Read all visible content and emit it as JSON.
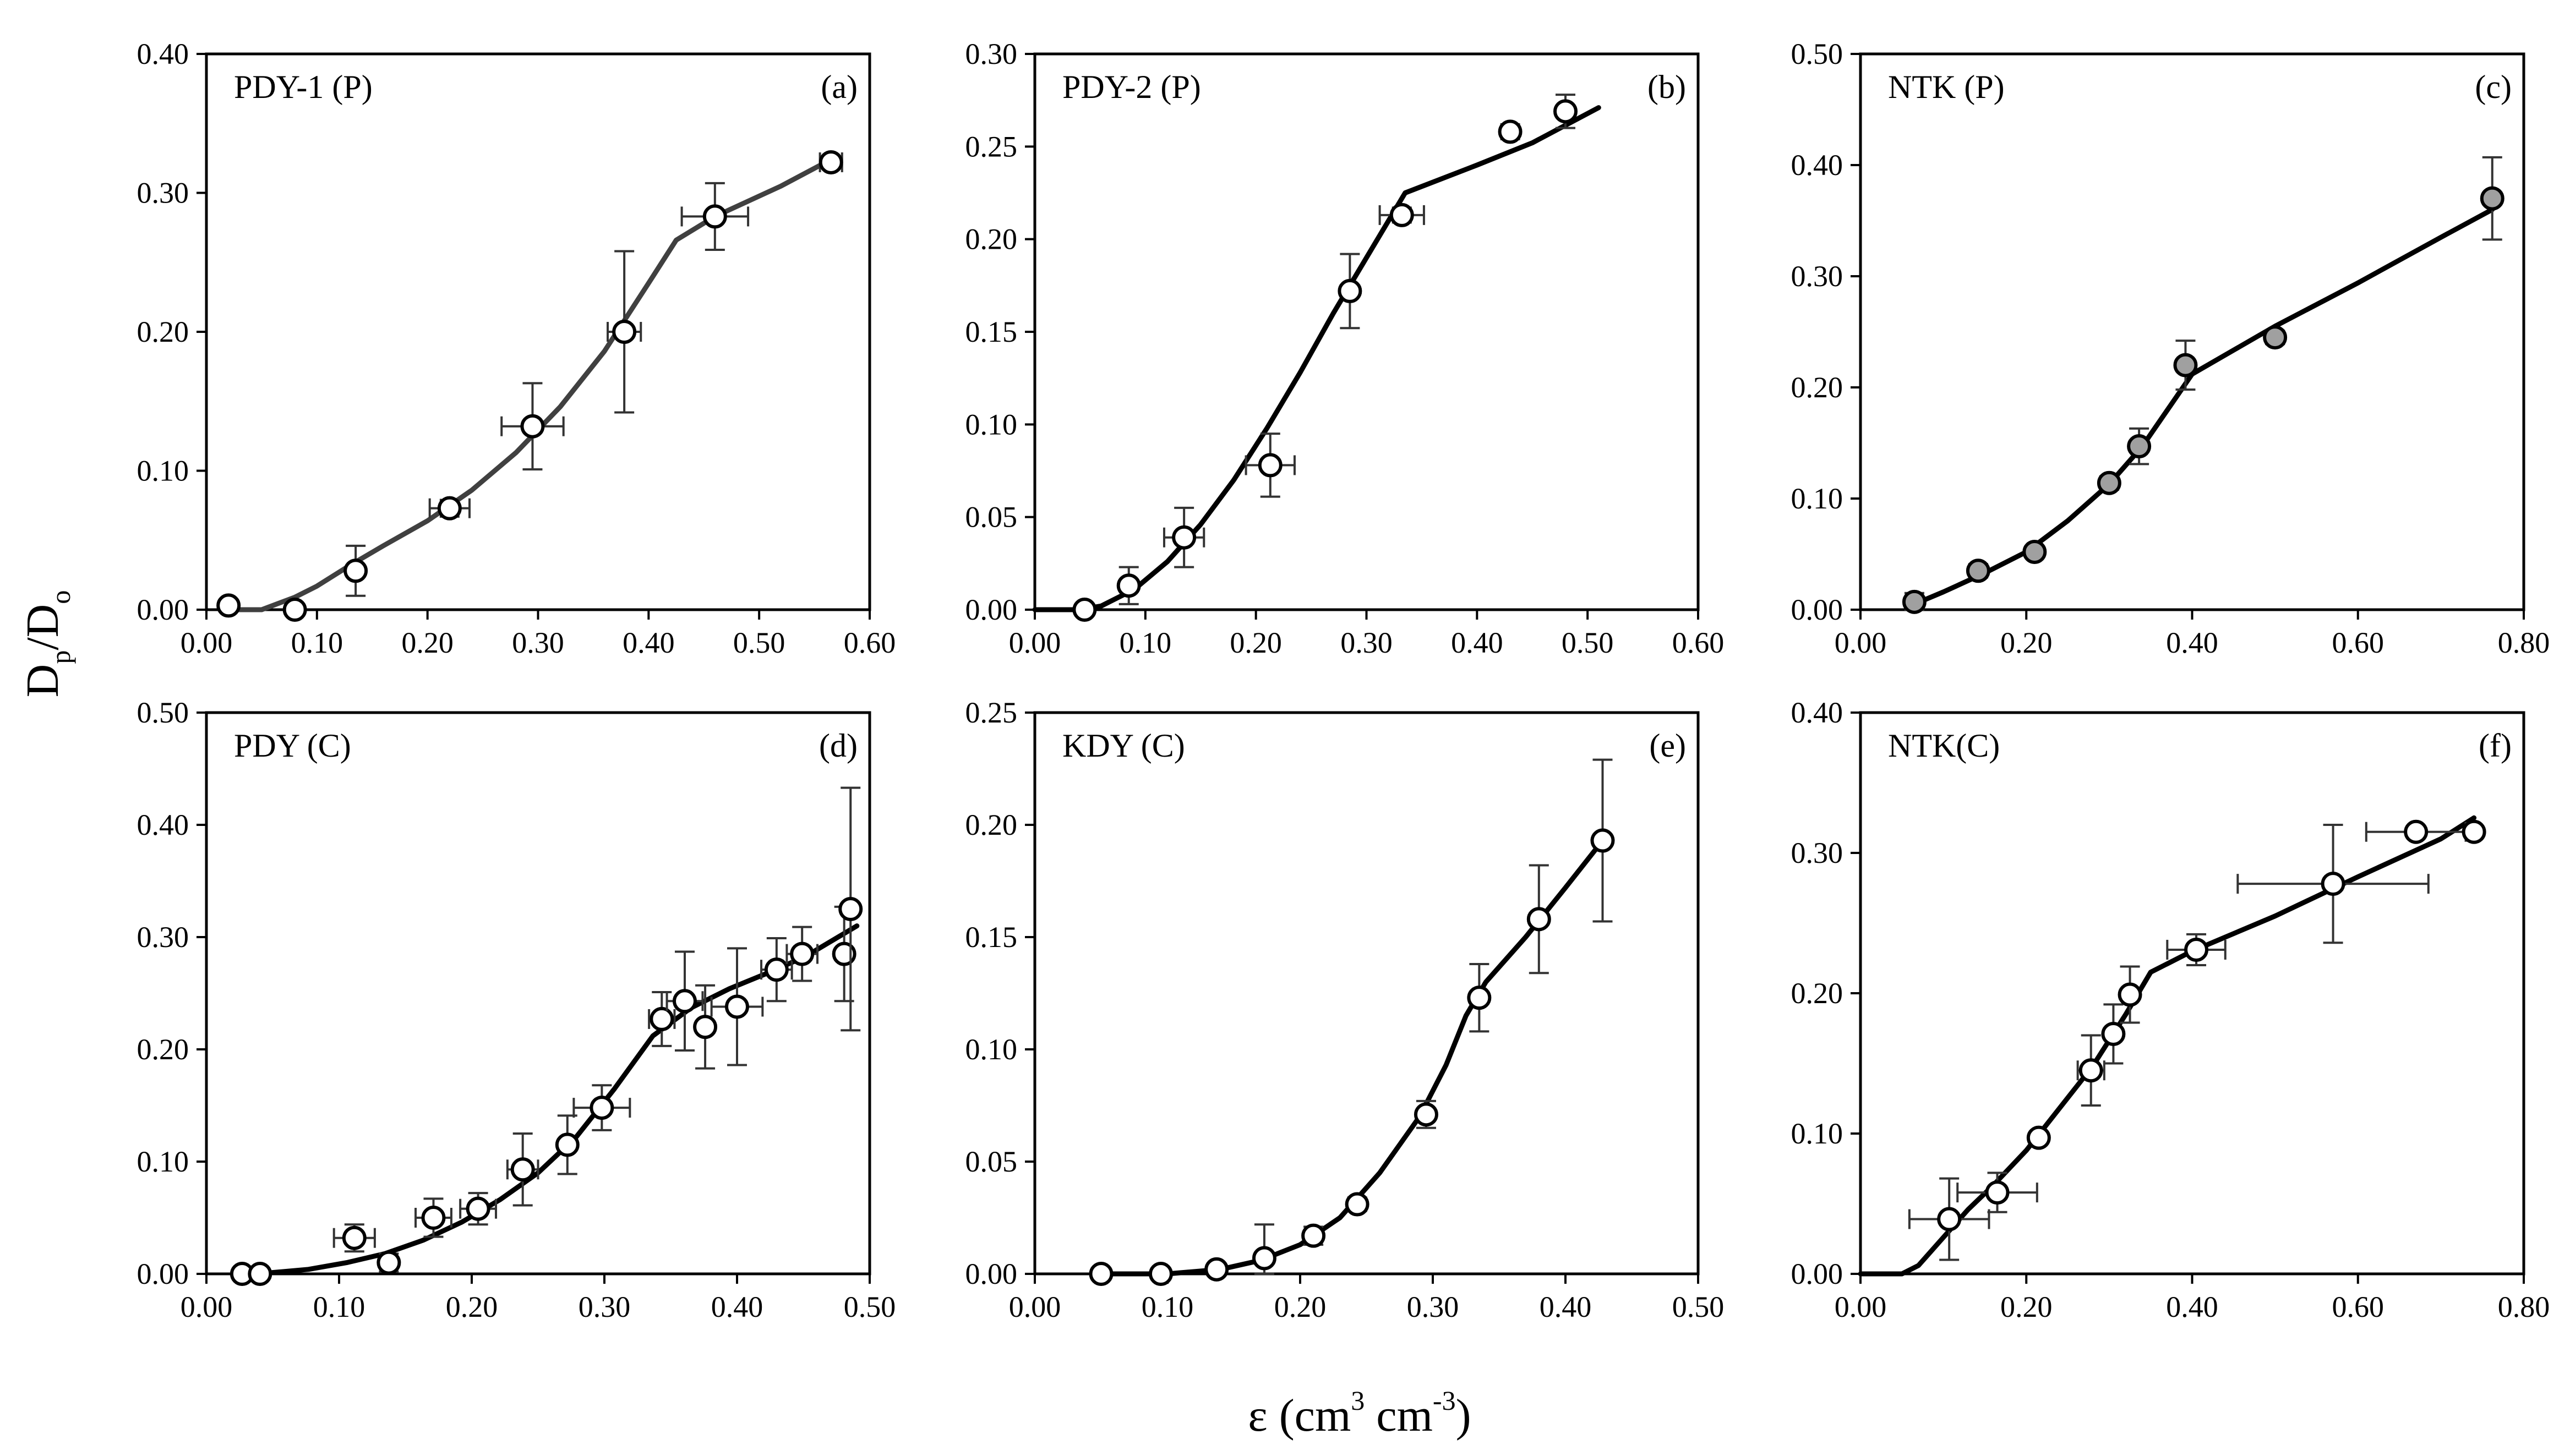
{
  "figure": {
    "xlabel": {
      "base": "ε (cm",
      "sup1": "3",
      "mid": " cm",
      "sup2": "-3",
      "end": ")"
    },
    "ylabel": {
      "d": "D",
      "p": "p",
      "slash": "/D",
      "o": "o"
    }
  },
  "chart_data": [
    {
      "type": "scatter",
      "title": "PDY-1 (P)",
      "tag": "(a)",
      "xlim": [
        0,
        0.6
      ],
      "ylim": [
        0,
        0.4
      ],
      "xticks": [
        "0.00",
        "0.10",
        "0.20",
        "0.30",
        "0.40",
        "0.50",
        "0.60"
      ],
      "yticks": [
        "0.00",
        "0.10",
        "0.20",
        "0.30",
        "0.40"
      ],
      "line_color": "#404040",
      "marker_fill": "#ffffff",
      "points": [
        {
          "x": 0.02,
          "y": 0.003,
          "yerr": 0,
          "xerr": 0
        },
        {
          "x": 0.08,
          "y": 0.0,
          "yerr": 0,
          "xerr": 0
        },
        {
          "x": 0.135,
          "y": 0.028,
          "yerr": 0.018,
          "xerr": 0
        },
        {
          "x": 0.22,
          "y": 0.073,
          "yerr": 0.006,
          "xerr": 0.018
        },
        {
          "x": 0.295,
          "y": 0.132,
          "yerr": 0.031,
          "xerr": 0.028
        },
        {
          "x": 0.378,
          "y": 0.2,
          "yerr": 0.058,
          "xerr": 0.015
        },
        {
          "x": 0.46,
          "y": 0.283,
          "yerr": 0.024,
          "xerr": 0.03
        },
        {
          "x": 0.565,
          "y": 0.322,
          "yerr": 0.004,
          "xerr": 0.01
        }
      ],
      "curve": {
        "x": [
          0.02,
          0.05,
          0.08,
          0.1,
          0.13,
          0.16,
          0.2,
          0.24,
          0.28,
          0.32,
          0.36,
          0.4,
          0.425,
          0.46,
          0.52,
          0.565
        ],
        "y": [
          0.0,
          0.0,
          0.009,
          0.017,
          0.032,
          0.046,
          0.064,
          0.086,
          0.113,
          0.146,
          0.186,
          0.235,
          0.266,
          0.283,
          0.305,
          0.324
        ]
      }
    },
    {
      "type": "scatter",
      "title": "PDY-2 (P)",
      "tag": "(b)",
      "xlim": [
        0,
        0.6
      ],
      "ylim": [
        0,
        0.3
      ],
      "xticks": [
        "0.00",
        "0.10",
        "0.20",
        "0.30",
        "0.40",
        "0.50",
        "0.60"
      ],
      "yticks": [
        "0.00",
        "0.05",
        "0.10",
        "0.15",
        "0.20",
        "0.25",
        "0.30"
      ],
      "line_color": "#000000",
      "marker_fill": "#ffffff",
      "points": [
        {
          "x": 0.045,
          "y": 0.0,
          "yerr": 0,
          "xerr": 0
        },
        {
          "x": 0.085,
          "y": 0.013,
          "yerr": 0.01,
          "xerr": 0
        },
        {
          "x": 0.135,
          "y": 0.039,
          "yerr": 0.016,
          "xerr": 0.018
        },
        {
          "x": 0.213,
          "y": 0.078,
          "yerr": 0.017,
          "xerr": 0.022
        },
        {
          "x": 0.285,
          "y": 0.172,
          "yerr": 0.02,
          "xerr": 0
        },
        {
          "x": 0.332,
          "y": 0.213,
          "yerr": 0.004,
          "xerr": 0.02
        },
        {
          "x": 0.43,
          "y": 0.258,
          "yerr": 0.004,
          "xerr": 0
        },
        {
          "x": 0.48,
          "y": 0.269,
          "yerr": 0.009,
          "xerr": 0
        }
      ],
      "curve": {
        "x": [
          0.0,
          0.04,
          0.06,
          0.09,
          0.12,
          0.15,
          0.18,
          0.21,
          0.24,
          0.27,
          0.3,
          0.335,
          0.4,
          0.45,
          0.51
        ],
        "y": [
          0.0,
          0.0,
          0.002,
          0.011,
          0.026,
          0.046,
          0.07,
          0.098,
          0.128,
          0.16,
          0.19,
          0.225,
          0.24,
          0.252,
          0.271
        ]
      }
    },
    {
      "type": "scatter",
      "title": "NTK (P)",
      "tag": "(c)",
      "xlim": [
        0,
        0.8
      ],
      "ylim": [
        0,
        0.5
      ],
      "xticks": [
        "0.00",
        "0.20",
        "0.40",
        "0.60",
        "0.80"
      ],
      "yticks": [
        "0.00",
        "0.10",
        "0.20",
        "0.30",
        "0.40",
        "0.50"
      ],
      "line_color": "#000000",
      "marker_fill": "#a0a0a0",
      "points": [
        {
          "x": 0.065,
          "y": 0.007,
          "yerr": 0.008,
          "xerr": 0
        },
        {
          "x": 0.142,
          "y": 0.035,
          "yerr": 0.006,
          "xerr": 0
        },
        {
          "x": 0.21,
          "y": 0.052,
          "yerr": 0.005,
          "xerr": 0
        },
        {
          "x": 0.3,
          "y": 0.114,
          "yerr": 0.006,
          "xerr": 0
        },
        {
          "x": 0.336,
          "y": 0.147,
          "yerr": 0.016,
          "xerr": 0
        },
        {
          "x": 0.392,
          "y": 0.22,
          "yerr": 0.022,
          "xerr": 0
        },
        {
          "x": 0.5,
          "y": 0.245,
          "yerr": 0.006,
          "xerr": 0
        },
        {
          "x": 0.762,
          "y": 0.37,
          "yerr": 0.037,
          "xerr": 0
        }
      ],
      "curve": {
        "x": [
          0.065,
          0.1,
          0.15,
          0.2,
          0.25,
          0.3,
          0.34,
          0.4,
          0.5,
          0.6,
          0.7,
          0.762
        ],
        "y": [
          0.005,
          0.016,
          0.033,
          0.052,
          0.08,
          0.113,
          0.147,
          0.212,
          0.255,
          0.294,
          0.335,
          0.36
        ]
      }
    },
    {
      "type": "scatter",
      "title": "PDY (C)",
      "tag": "(d)",
      "xlim": [
        0,
        0.52
      ],
      "ylim": [
        0,
        0.5
      ],
      "xticks": [
        "0.00",
        "0.10",
        "0.20",
        "0.30",
        "0.40",
        "0.50"
      ],
      "yticks": [
        "0.00",
        "0.10",
        "0.20",
        "0.30",
        "0.40",
        "0.50"
      ],
      "line_color": "#000000",
      "marker_fill": "#ffffff",
      "points": [
        {
          "x": 0.028,
          "y": 0.0,
          "yerr": 0,
          "xerr": 0
        },
        {
          "x": 0.042,
          "y": 0.0,
          "yerr": 0,
          "xerr": 0
        },
        {
          "x": 0.116,
          "y": 0.032,
          "yerr": 0.012,
          "xerr": 0.016
        },
        {
          "x": 0.143,
          "y": 0.01,
          "yerr": 0.008,
          "xerr": 0
        },
        {
          "x": 0.178,
          "y": 0.05,
          "yerr": 0.017,
          "xerr": 0.014
        },
        {
          "x": 0.213,
          "y": 0.058,
          "yerr": 0.014,
          "xerr": 0.014
        },
        {
          "x": 0.248,
          "y": 0.093,
          "yerr": 0.032,
          "xerr": 0.012
        },
        {
          "x": 0.283,
          "y": 0.115,
          "yerr": 0.026,
          "xerr": 0
        },
        {
          "x": 0.31,
          "y": 0.148,
          "yerr": 0.02,
          "xerr": 0.022
        },
        {
          "x": 0.357,
          "y": 0.227,
          "yerr": 0.024,
          "xerr": 0.01
        },
        {
          "x": 0.375,
          "y": 0.243,
          "yerr": 0.044,
          "xerr": 0.014
        },
        {
          "x": 0.391,
          "y": 0.22,
          "yerr": 0.037,
          "xerr": 0
        },
        {
          "x": 0.416,
          "y": 0.238,
          "yerr": 0.052,
          "xerr": 0.02
        },
        {
          "x": 0.447,
          "y": 0.271,
          "yerr": 0.028,
          "xerr": 0.012
        },
        {
          "x": 0.467,
          "y": 0.285,
          "yerr": 0.024,
          "xerr": 0.012
        },
        {
          "x": 0.5,
          "y": 0.285,
          "yerr": 0.042,
          "xerr": 0
        },
        {
          "x": 0.505,
          "y": 0.325,
          "yerr": 0.108,
          "xerr": 0
        }
      ],
      "curve": {
        "x": [
          0.03,
          0.05,
          0.08,
          0.11,
          0.14,
          0.17,
          0.2,
          0.23,
          0.26,
          0.29,
          0.32,
          0.35,
          0.38,
          0.41,
          0.44,
          0.47,
          0.51
        ],
        "y": [
          0.0,
          0.001,
          0.004,
          0.01,
          0.018,
          0.03,
          0.046,
          0.066,
          0.09,
          0.122,
          0.165,
          0.212,
          0.237,
          0.254,
          0.268,
          0.283,
          0.31
        ]
      }
    },
    {
      "type": "scatter",
      "title": "KDY (C)",
      "tag": "(e)",
      "xlim": [
        0,
        0.5
      ],
      "ylim": [
        0,
        0.25
      ],
      "xticks": [
        "0.00",
        "0.10",
        "0.20",
        "0.30",
        "0.40",
        "0.50"
      ],
      "yticks": [
        "0.00",
        "0.05",
        "0.10",
        "0.15",
        "0.20",
        "0.25"
      ],
      "line_color": "#000000",
      "marker_fill": "#ffffff",
      "points": [
        {
          "x": 0.05,
          "y": 0.0,
          "yerr": 0,
          "xerr": 0
        },
        {
          "x": 0.095,
          "y": 0.0,
          "yerr": 0,
          "xerr": 0
        },
        {
          "x": 0.137,
          "y": 0.002,
          "yerr": 0,
          "xerr": 0
        },
        {
          "x": 0.173,
          "y": 0.007,
          "yerr": 0.015,
          "xerr": 0
        },
        {
          "x": 0.21,
          "y": 0.017,
          "yerr": 0.004,
          "xerr": 0
        },
        {
          "x": 0.243,
          "y": 0.031,
          "yerr": 0.003,
          "xerr": 0
        },
        {
          "x": 0.295,
          "y": 0.071,
          "yerr": 0.006,
          "xerr": 0
        },
        {
          "x": 0.335,
          "y": 0.123,
          "yerr": 0.015,
          "xerr": 0
        },
        {
          "x": 0.38,
          "y": 0.158,
          "yerr": 0.024,
          "xerr": 0
        },
        {
          "x": 0.428,
          "y": 0.193,
          "yerr": 0.036,
          "xerr": 0
        }
      ],
      "curve": {
        "x": [
          0.05,
          0.1,
          0.14,
          0.17,
          0.2,
          0.23,
          0.26,
          0.29,
          0.31,
          0.325,
          0.34,
          0.37,
          0.4,
          0.428
        ],
        "y": [
          0.0,
          0.0,
          0.002,
          0.006,
          0.013,
          0.025,
          0.045,
          0.07,
          0.093,
          0.115,
          0.13,
          0.15,
          0.172,
          0.193
        ]
      }
    },
    {
      "type": "scatter",
      "title": "NTK(C)",
      "tag": "(f)",
      "xlim": [
        0,
        0.8
      ],
      "ylim": [
        0,
        0.4
      ],
      "xticks": [
        "0.00",
        "0.20",
        "0.40",
        "0.60",
        "0.80"
      ],
      "yticks": [
        "0.00",
        "0.10",
        "0.20",
        "0.30",
        "0.40"
      ],
      "line_color": "#000000",
      "marker_fill": "#ffffff",
      "points": [
        {
          "x": 0.107,
          "y": 0.039,
          "yerr": 0.029,
          "xerr": 0.048
        },
        {
          "x": 0.165,
          "y": 0.058,
          "yerr": 0.014,
          "xerr": 0.048
        },
        {
          "x": 0.215,
          "y": 0.097,
          "yerr": 0.004,
          "xerr": 0
        },
        {
          "x": 0.278,
          "y": 0.145,
          "yerr": 0.025,
          "xerr": 0.016
        },
        {
          "x": 0.305,
          "y": 0.171,
          "yerr": 0.021,
          "xerr": 0
        },
        {
          "x": 0.325,
          "y": 0.199,
          "yerr": 0.02,
          "xerr": 0
        },
        {
          "x": 0.405,
          "y": 0.231,
          "yerr": 0.011,
          "xerr": 0.035
        },
        {
          "x": 0.57,
          "y": 0.278,
          "yerr": 0.042,
          "xerr": 0.115
        },
        {
          "x": 0.67,
          "y": 0.315,
          "yerr": 0,
          "xerr": 0.06
        },
        {
          "x": 0.74,
          "y": 0.315,
          "yerr": 0,
          "xerr": 0
        }
      ],
      "curve": {
        "x": [
          0.0,
          0.05,
          0.07,
          0.1,
          0.13,
          0.16,
          0.2,
          0.24,
          0.28,
          0.32,
          0.35,
          0.4,
          0.5,
          0.6,
          0.7,
          0.74
        ],
        "y": [
          0.0,
          0.0,
          0.006,
          0.026,
          0.046,
          0.063,
          0.088,
          0.118,
          0.148,
          0.185,
          0.215,
          0.23,
          0.255,
          0.283,
          0.31,
          0.325
        ]
      }
    }
  ]
}
